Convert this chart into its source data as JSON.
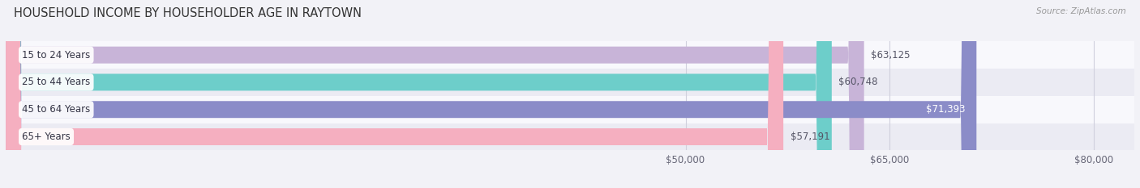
{
  "title": "HOUSEHOLD INCOME BY HOUSEHOLDER AGE IN RAYTOWN",
  "source": "Source: ZipAtlas.com",
  "categories": [
    "15 to 24 Years",
    "25 to 44 Years",
    "45 to 64 Years",
    "65+ Years"
  ],
  "values": [
    63125,
    60748,
    71393,
    57191
  ],
  "bar_colors": [
    "#c8b4d8",
    "#6dceca",
    "#8b8cc8",
    "#f5afc0"
  ],
  "value_labels": [
    "$63,125",
    "$60,748",
    "$71,393",
    "$57,191"
  ],
  "xlim_min": 0,
  "xlim_max": 83000,
  "xticks": [
    50000,
    65000,
    80000
  ],
  "xtick_labels": [
    "$50,000",
    "$65,000",
    "$80,000"
  ],
  "bar_height": 0.62,
  "background_color": "#f2f2f7",
  "title_fontsize": 10.5,
  "label_fontsize": 8.5,
  "value_fontsize": 8.5,
  "source_fontsize": 7.5
}
